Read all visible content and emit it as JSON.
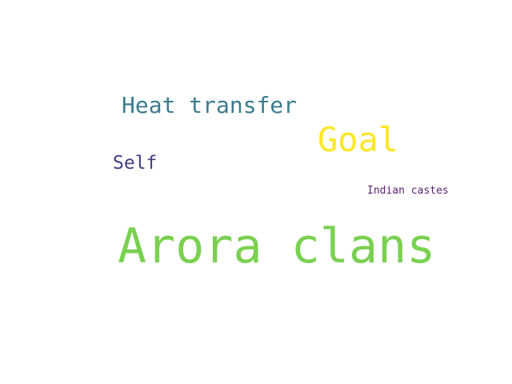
{
  "words": [
    {
      "text": "Heat transfer",
      "color": "#3b7c8e"
    },
    {
      "text": "Goal",
      "color": "#fde725"
    },
    {
      "text": "Self",
      "color": "#433e85"
    },
    {
      "text": "Indian castes",
      "color": "#5a1f6e"
    },
    {
      "text": "Arora clans",
      "color": "#7ad151"
    }
  ]
}
